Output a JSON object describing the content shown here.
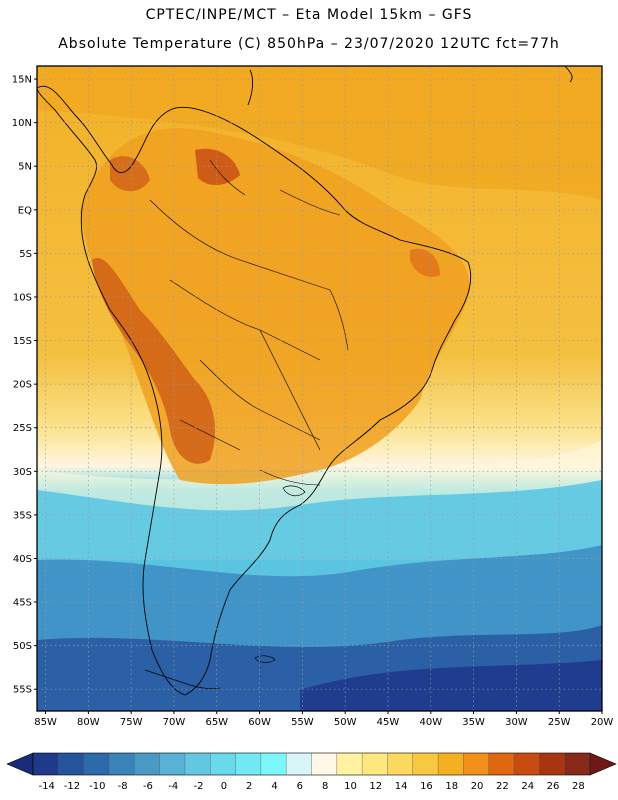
{
  "header": {
    "line1": "CPTEC/INPE/MCT –  Eta Model 15km – GFS",
    "line2": "Absolute Temperature (C) 850hPa – 23/07/2020 12UTC fct=77h"
  },
  "axes": {
    "lat_labels": [
      "15N",
      "10N",
      "5N",
      "EQ",
      "5S",
      "10S",
      "15S",
      "20S",
      "25S",
      "30S",
      "35S",
      "40S",
      "45S",
      "50S",
      "55S"
    ],
    "lat_values": [
      15,
      10,
      5,
      0,
      -5,
      -10,
      -15,
      -20,
      -25,
      -30,
      -35,
      -40,
      -45,
      -50,
      -55
    ],
    "lon_labels": [
      "85W",
      "80W",
      "75W",
      "70W",
      "65W",
      "60W",
      "55W",
      "50W",
      "45W",
      "40W",
      "35W",
      "30W",
      "25W",
      "20W"
    ],
    "lon_values": [
      -85,
      -80,
      -75,
      -70,
      -65,
      -60,
      -55,
      -50,
      -45,
      -40,
      -35,
      -30,
      -25,
      -20
    ],
    "lat_range": [
      -57.5,
      16.5
    ],
    "lon_range": [
      -86,
      -20
    ]
  },
  "colorbar": {
    "labels": [
      "-14",
      "-12",
      "-10",
      "-8",
      "-6",
      "-4",
      "-2",
      "0",
      "2",
      "4",
      "6",
      "8",
      "10",
      "12",
      "14",
      "16",
      "18",
      "20",
      "22",
      "24",
      "26",
      "28"
    ],
    "colors": [
      "#1f3a8a",
      "#25549c",
      "#2d6aab",
      "#3a82ba",
      "#4a9ac8",
      "#58b2d6",
      "#62c8e2",
      "#6ad9ec",
      "#72e8f4",
      "#7cf6f8",
      "#d8f6f8",
      "#fff8e8",
      "#fff2a0",
      "#fde880",
      "#fbd860",
      "#f8c840",
      "#f4b020",
      "#f09018",
      "#e06810",
      "#c84c10",
      "#a83410",
      "#882818"
    ],
    "under_color": "#1a2c78",
    "over_color": "#701818"
  }
}
